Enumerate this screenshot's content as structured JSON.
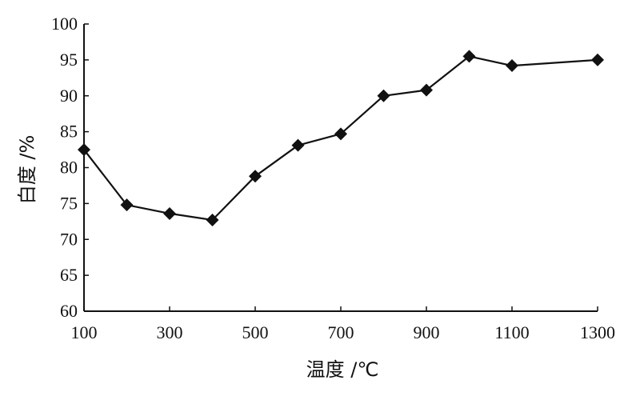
{
  "chart_data": {
    "type": "line",
    "title": "",
    "xlabel": "温度 /℃",
    "ylabel": "白度 /%",
    "xlim": [
      100,
      1300
    ],
    "ylim": [
      60,
      100
    ],
    "x_ticks": [
      100,
      300,
      500,
      700,
      900,
      1100,
      1300
    ],
    "y_ticks": [
      60,
      65,
      70,
      75,
      80,
      85,
      90,
      95,
      100
    ],
    "grid": false,
    "legend": "none",
    "marker": "diamond",
    "line_color": "#111111",
    "series": [
      {
        "x": [
          100,
          200,
          300,
          400,
          500,
          600,
          700,
          800,
          900,
          1000,
          1100,
          1300
        ],
        "y": [
          82.5,
          74.8,
          73.6,
          72.7,
          78.8,
          83.1,
          84.7,
          90.0,
          90.8,
          95.5,
          94.2,
          95.0
        ]
      }
    ]
  }
}
